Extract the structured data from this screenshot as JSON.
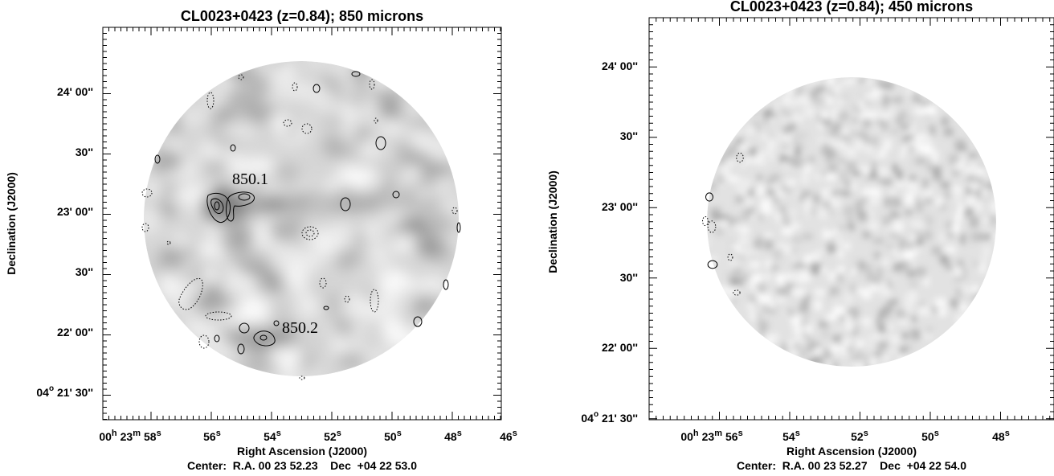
{
  "figure": {
    "panels": [
      {
        "title": "CL0023+0423 (z=0.84); 850 microns",
        "xlabel": "Right Ascension (J2000)",
        "ylabel": "Declination (J2000)",
        "center": "Center:  R.A. 00 23 52.23    Dec  +04 22 53.0",
        "ra_ticks": [
          {
            "h": "00",
            "hs": "h",
            "m": "23",
            "ms": "m",
            "s": "58",
            "ss": "s"
          },
          {
            "s": "56",
            "ss": "s"
          },
          {
            "s": "54",
            "ss": "s"
          },
          {
            "s": "52",
            "ss": "s"
          },
          {
            "s": "50",
            "ss": "s"
          },
          {
            "s": "48",
            "ss": "s"
          },
          {
            "s": "46",
            "ss": "s"
          }
        ],
        "dec_ticks": [
          {
            "d": "",
            "text": "24' 00''"
          },
          {
            "d": "",
            "text": "30''"
          },
          {
            "d": "",
            "text": "23' 00''"
          },
          {
            "d": "",
            "text": "30''"
          },
          {
            "d": "",
            "text": "22' 00''"
          },
          {
            "d": "04",
            "text": " 21' 30''"
          }
        ],
        "sources": [
          "850.1",
          "850.2"
        ],
        "degree_symbol": "o"
      },
      {
        "title": "CL0023+0423 (z=0.84); 450 microns",
        "xlabel": "Right Ascension (J2000)",
        "ylabel": "Declination (J2000)",
        "center": "Center:  R.A. 00 23 52.27    Dec  +04 22 54.0",
        "ra_ticks": [
          {
            "h": "00",
            "hs": "h",
            "m": "23",
            "ms": "m",
            "s": "56",
            "ss": "s"
          },
          {
            "s": "54",
            "ss": "s"
          },
          {
            "s": "52",
            "ss": "s"
          },
          {
            "s": "50",
            "ss": "s"
          },
          {
            "s": "48",
            "ss": "s"
          }
        ],
        "dec_ticks": [
          {
            "d": "",
            "text": "24' 00''"
          },
          {
            "d": "",
            "text": "30''"
          },
          {
            "d": "",
            "text": "23' 00''"
          },
          {
            "d": "",
            "text": "30''"
          },
          {
            "d": "",
            "text": "22' 00''"
          },
          {
            "d": "04",
            "text": " 21' 30''"
          }
        ],
        "degree_symbol": "o"
      }
    ]
  }
}
